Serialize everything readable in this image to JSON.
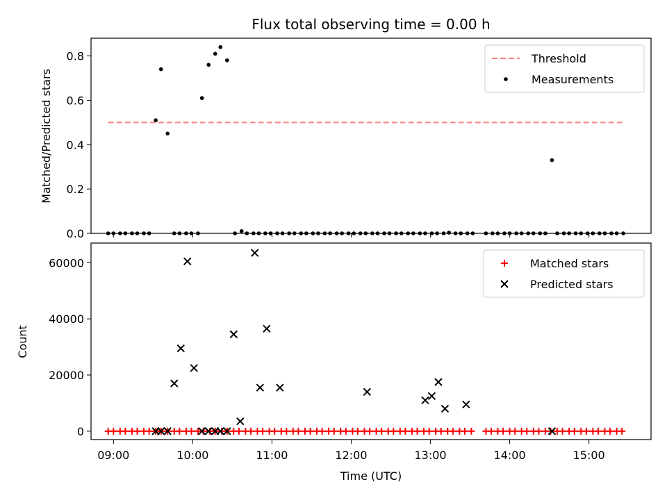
{
  "chart_data": [
    {
      "type": "scatter",
      "title": "Flux total observing time = 0.00 h",
      "xlabel": "",
      "ylabel": "Matched/Predicted stars",
      "xlim": [
        "08:43",
        "15:47"
      ],
      "ylim": [
        0,
        0.88
      ],
      "yticks": [
        0.0,
        0.2,
        0.4,
        0.6,
        0.8
      ],
      "ytick_labels": [
        "0.0",
        "0.2",
        "0.4",
        "0.6",
        "0.8"
      ],
      "legend_position": "top-right",
      "series": [
        {
          "name": "Threshold",
          "kind": "line",
          "style": "dashed",
          "color": "#ff7f7f",
          "x": [
            "08:56",
            "15:27"
          ],
          "y": [
            0.5,
            0.5
          ]
        },
        {
          "name": "Measurements",
          "kind": "scatter",
          "marker": "dot",
          "color": "#000000",
          "points": [
            [
              "08:56",
              0.0
            ],
            [
              "09:00",
              0.0
            ],
            [
              "09:05",
              0.0
            ],
            [
              "09:09",
              0.0
            ],
            [
              "09:14",
              0.0
            ],
            [
              "09:18",
              0.0
            ],
            [
              "09:23",
              0.0
            ],
            [
              "09:27",
              0.0
            ],
            [
              "09:32",
              0.51
            ],
            [
              "09:36",
              0.74
            ],
            [
              "09:41",
              0.45
            ],
            [
              "09:46",
              0.0
            ],
            [
              "09:50",
              0.0
            ],
            [
              "09:55",
              0.0
            ],
            [
              "09:59",
              0.0
            ],
            [
              "10:04",
              0.0
            ],
            [
              "10:07",
              0.61
            ],
            [
              "10:12",
              0.76
            ],
            [
              "10:17",
              0.81
            ],
            [
              "10:21",
              0.84
            ],
            [
              "10:26",
              0.78
            ],
            [
              "10:32",
              0.0
            ],
            [
              "10:37",
              0.01
            ],
            [
              "10:41",
              0.0
            ],
            [
              "10:46",
              0.0
            ],
            [
              "10:50",
              0.0
            ],
            [
              "10:55",
              0.0
            ],
            [
              "10:59",
              0.0
            ],
            [
              "11:04",
              0.0
            ],
            [
              "11:08",
              0.0
            ],
            [
              "11:13",
              0.0
            ],
            [
              "11:17",
              0.0
            ],
            [
              "11:22",
              0.0
            ],
            [
              "11:26",
              0.0
            ],
            [
              "11:31",
              0.0
            ],
            [
              "11:35",
              0.0
            ],
            [
              "11:40",
              0.0
            ],
            [
              "11:44",
              0.0
            ],
            [
              "11:49",
              0.0
            ],
            [
              "11:53",
              0.0
            ],
            [
              "11:58",
              0.0
            ],
            [
              "12:02",
              0.0
            ],
            [
              "12:07",
              0.0
            ],
            [
              "12:11",
              0.0
            ],
            [
              "12:16",
              0.0
            ],
            [
              "12:20",
              0.0
            ],
            [
              "12:25",
              0.0
            ],
            [
              "12:29",
              0.0
            ],
            [
              "12:34",
              0.0
            ],
            [
              "12:38",
              0.0
            ],
            [
              "12:43",
              0.0
            ],
            [
              "12:47",
              0.0
            ],
            [
              "12:52",
              0.0
            ],
            [
              "12:56",
              0.0
            ],
            [
              "13:01",
              0.0
            ],
            [
              "13:05",
              0.0
            ],
            [
              "13:10",
              0.0
            ],
            [
              "13:14",
              0.003
            ],
            [
              "13:19",
              0.0
            ],
            [
              "13:23",
              0.0
            ],
            [
              "13:28",
              0.0
            ],
            [
              "13:32",
              0.0
            ],
            [
              "13:42",
              0.0
            ],
            [
              "13:47",
              0.0
            ],
            [
              "13:51",
              0.0
            ],
            [
              "13:56",
              0.0
            ],
            [
              "14:00",
              0.0
            ],
            [
              "14:05",
              0.0
            ],
            [
              "14:09",
              0.0
            ],
            [
              "14:14",
              0.0
            ],
            [
              "14:18",
              0.0
            ],
            [
              "14:23",
              0.0
            ],
            [
              "14:27",
              0.0
            ],
            [
              "14:32",
              0.33
            ],
            [
              "14:36",
              0.0
            ],
            [
              "14:41",
              0.0
            ],
            [
              "14:45",
              0.0
            ],
            [
              "14:50",
              0.0
            ],
            [
              "14:54",
              0.0
            ],
            [
              "14:59",
              0.0
            ],
            [
              "15:03",
              0.0
            ],
            [
              "15:08",
              0.0
            ],
            [
              "15:12",
              0.0
            ],
            [
              "15:17",
              0.0
            ],
            [
              "15:21",
              0.0
            ],
            [
              "15:26",
              0.0
            ]
          ]
        }
      ]
    },
    {
      "type": "scatter",
      "title": "",
      "xlabel": "Time (UTC)",
      "ylabel": "Count",
      "xlim": [
        "08:43",
        "15:47"
      ],
      "ylim": [
        -3000,
        67000
      ],
      "xticks": [
        "09:00",
        "10:00",
        "11:00",
        "12:00",
        "13:00",
        "14:00",
        "15:00"
      ],
      "yticks": [
        0,
        20000,
        40000,
        60000
      ],
      "ytick_labels": [
        "0",
        "20000",
        "40000",
        "60000"
      ],
      "legend_position": "top-right",
      "series": [
        {
          "name": "Matched stars",
          "kind": "scatter",
          "marker": "plus",
          "color": "#ff0000",
          "points": [
            [
              "08:56",
              0
            ],
            [
              "09:00",
              0
            ],
            [
              "09:05",
              0
            ],
            [
              "09:09",
              0
            ],
            [
              "09:14",
              0
            ],
            [
              "09:18",
              0
            ],
            [
              "09:23",
              0
            ],
            [
              "09:27",
              0
            ],
            [
              "09:32",
              0
            ],
            [
              "09:36",
              0
            ],
            [
              "09:41",
              0
            ],
            [
              "09:46",
              0
            ],
            [
              "09:50",
              0
            ],
            [
              "09:55",
              0
            ],
            [
              "09:59",
              0
            ],
            [
              "10:04",
              0
            ],
            [
              "10:08",
              0
            ],
            [
              "10:13",
              0
            ],
            [
              "10:17",
              0
            ],
            [
              "10:22",
              0
            ],
            [
              "10:26",
              0
            ],
            [
              "10:31",
              0
            ],
            [
              "10:35",
              0
            ],
            [
              "10:40",
              0
            ],
            [
              "10:44",
              0
            ],
            [
              "10:49",
              0
            ],
            [
              "10:53",
              0
            ],
            [
              "10:58",
              0
            ],
            [
              "11:02",
              0
            ],
            [
              "11:07",
              0
            ],
            [
              "11:11",
              0
            ],
            [
              "11:16",
              0
            ],
            [
              "11:20",
              0
            ],
            [
              "11:25",
              0
            ],
            [
              "11:29",
              0
            ],
            [
              "11:34",
              0
            ],
            [
              "11:38",
              0
            ],
            [
              "11:43",
              0
            ],
            [
              "11:47",
              0
            ],
            [
              "11:52",
              0
            ],
            [
              "11:56",
              0
            ],
            [
              "12:01",
              0
            ],
            [
              "12:05",
              0
            ],
            [
              "12:10",
              0
            ],
            [
              "12:14",
              0
            ],
            [
              "12:19",
              0
            ],
            [
              "12:23",
              0
            ],
            [
              "12:28",
              0
            ],
            [
              "12:32",
              0
            ],
            [
              "12:37",
              0
            ],
            [
              "12:41",
              0
            ],
            [
              "12:46",
              0
            ],
            [
              "12:50",
              0
            ],
            [
              "12:55",
              0
            ],
            [
              "12:59",
              0
            ],
            [
              "13:04",
              0
            ],
            [
              "13:08",
              0
            ],
            [
              "13:13",
              0
            ],
            [
              "13:17",
              0
            ],
            [
              "13:22",
              0
            ],
            [
              "13:26",
              0
            ],
            [
              "13:31",
              0
            ],
            [
              "13:42",
              0
            ],
            [
              "13:46",
              0
            ],
            [
              "13:51",
              0
            ],
            [
              "13:55",
              0
            ],
            [
              "14:00",
              0
            ],
            [
              "14:04",
              0
            ],
            [
              "14:09",
              0
            ],
            [
              "14:13",
              0
            ],
            [
              "14:18",
              0
            ],
            [
              "14:22",
              0
            ],
            [
              "14:27",
              0
            ],
            [
              "14:31",
              0
            ],
            [
              "14:36",
              0
            ],
            [
              "14:40",
              0
            ],
            [
              "14:45",
              0
            ],
            [
              "14:49",
              0
            ],
            [
              "14:54",
              0
            ],
            [
              "14:58",
              0
            ],
            [
              "15:03",
              0
            ],
            [
              "15:07",
              0
            ],
            [
              "15:12",
              0
            ],
            [
              "15:16",
              0
            ],
            [
              "15:21",
              0
            ],
            [
              "15:25",
              0
            ]
          ]
        },
        {
          "name": "Predicted stars",
          "kind": "scatter",
          "marker": "x",
          "color": "#000000",
          "points": [
            [
              "09:32",
              0
            ],
            [
              "09:36",
              0
            ],
            [
              "09:41",
              0
            ],
            [
              "09:46",
              17000
            ],
            [
              "09:51",
              29500
            ],
            [
              "09:56",
              60500
            ],
            [
              "10:01",
              22500
            ],
            [
              "10:07",
              0
            ],
            [
              "10:12",
              0
            ],
            [
              "10:17",
              0
            ],
            [
              "10:21",
              0
            ],
            [
              "10:26",
              0
            ],
            [
              "10:31",
              34500
            ],
            [
              "10:36",
              3500
            ],
            [
              "10:47",
              63500
            ],
            [
              "10:51",
              15500
            ],
            [
              "10:56",
              36500
            ],
            [
              "11:06",
              15500
            ],
            [
              "12:12",
              14000
            ],
            [
              "12:56",
              11000
            ],
            [
              "13:01",
              12500
            ],
            [
              "13:06",
              17500
            ],
            [
              "13:11",
              8000
            ],
            [
              "13:27",
              9500
            ],
            [
              "14:32",
              0
            ]
          ]
        }
      ]
    }
  ]
}
